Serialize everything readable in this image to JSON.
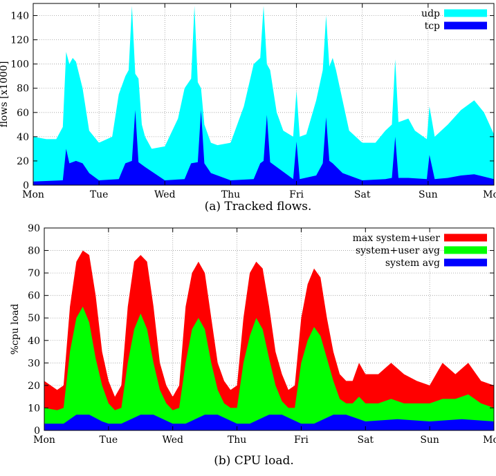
{
  "chart_data": [
    {
      "type": "area",
      "caption": "(a) Tracked flows.",
      "ylabel": "flows [x1000]",
      "xlabel": "",
      "ylim": [
        0,
        150
      ],
      "yticks": [
        0,
        20,
        40,
        60,
        80,
        100,
        120,
        140
      ],
      "xlim": [
        0,
        7
      ],
      "x_tick_labels": [
        "Mon",
        "Tue",
        "Wed",
        "Thu",
        "Fri",
        "Sat",
        "Sun",
        "Mon"
      ],
      "grid": true,
      "legend_position": "top-right",
      "series": [
        {
          "name": "udp",
          "color": "#00FFFF",
          "x": [
            0,
            0.2,
            0.35,
            0.45,
            0.5,
            0.55,
            0.6,
            0.65,
            0.75,
            0.85,
            1.0,
            1.2,
            1.3,
            1.4,
            1.45,
            1.5,
            1.55,
            1.6,
            1.65,
            1.7,
            1.8,
            2.0,
            2.2,
            2.3,
            2.4,
            2.45,
            2.5,
            2.55,
            2.6,
            2.7,
            2.8,
            3.0,
            3.2,
            3.35,
            3.45,
            3.5,
            3.55,
            3.6,
            3.7,
            3.8,
            3.95,
            4.0,
            4.05,
            4.15,
            4.3,
            4.4,
            4.45,
            4.5,
            4.55,
            4.6,
            4.7,
            4.8,
            5.0,
            5.2,
            5.35,
            5.45,
            5.5,
            5.55,
            5.6,
            5.7,
            5.8,
            5.98,
            6.02,
            6.1,
            6.3,
            6.5,
            6.7,
            6.85,
            7.0
          ],
          "y": [
            40,
            38,
            38,
            48,
            110,
            100,
            105,
            102,
            80,
            45,
            35,
            40,
            75,
            90,
            95,
            148,
            92,
            88,
            50,
            40,
            30,
            32,
            55,
            80,
            88,
            148,
            85,
            80,
            50,
            35,
            33,
            35,
            65,
            100,
            105,
            148,
            100,
            95,
            60,
            45,
            40,
            78,
            40,
            42,
            70,
            95,
            140,
            98,
            105,
            95,
            70,
            45,
            35,
            35,
            45,
            50,
            104,
            52,
            53,
            55,
            45,
            38,
            65,
            40,
            50,
            62,
            70,
            60,
            42
          ]
        },
        {
          "name": "tcp",
          "color": "#0000FF",
          "x": [
            0,
            0.45,
            0.5,
            0.55,
            0.65,
            0.75,
            0.85,
            1.0,
            1.3,
            1.4,
            1.5,
            1.55,
            1.6,
            1.7,
            2.0,
            2.3,
            2.4,
            2.5,
            2.55,
            2.6,
            2.7,
            3.0,
            3.35,
            3.45,
            3.5,
            3.55,
            3.6,
            3.7,
            3.95,
            4.0,
            4.05,
            4.3,
            4.4,
            4.45,
            4.5,
            4.55,
            4.7,
            5.0,
            5.35,
            5.45,
            5.5,
            5.55,
            5.7,
            5.98,
            6.02,
            6.1,
            6.3,
            6.5,
            6.7,
            7.0
          ],
          "y": [
            3,
            4,
            30,
            18,
            20,
            18,
            10,
            4,
            5,
            18,
            20,
            62,
            19,
            15,
            4,
            5,
            18,
            19,
            62,
            18,
            10,
            4,
            5,
            18,
            20,
            58,
            19,
            15,
            5,
            36,
            5,
            8,
            18,
            56,
            20,
            18,
            10,
            4,
            5,
            6,
            40,
            6,
            6,
            5,
            25,
            5,
            6,
            8,
            9,
            5
          ]
        }
      ]
    },
    {
      "type": "area",
      "caption": "(b) CPU load.",
      "ylabel": "%cpu load",
      "xlabel": "",
      "ylim": [
        0,
        90
      ],
      "yticks": [
        0,
        10,
        20,
        30,
        40,
        50,
        60,
        70,
        80,
        90
      ],
      "xlim": [
        0,
        7
      ],
      "x_tick_labels": [
        "Mon",
        "Tue",
        "Wed",
        "Thu",
        "Fri",
        "Sat",
        "Sun",
        "Mon"
      ],
      "grid": true,
      "legend_position": "top-right",
      "series": [
        {
          "name": "max system+user",
          "color": "#FF0000",
          "x": [
            0,
            0.2,
            0.3,
            0.4,
            0.5,
            0.6,
            0.7,
            0.8,
            0.9,
            1.0,
            1.1,
            1.2,
            1.3,
            1.4,
            1.5,
            1.6,
            1.7,
            1.8,
            1.9,
            2.0,
            2.1,
            2.2,
            2.3,
            2.4,
            2.5,
            2.6,
            2.7,
            2.8,
            2.9,
            3.0,
            3.1,
            3.2,
            3.3,
            3.4,
            3.5,
            3.6,
            3.7,
            3.8,
            3.9,
            4.0,
            4.1,
            4.2,
            4.3,
            4.4,
            4.5,
            4.6,
            4.7,
            4.8,
            4.9,
            5.0,
            5.2,
            5.4,
            5.6,
            5.8,
            6.0,
            6.2,
            6.4,
            6.6,
            6.8,
            7.0
          ],
          "y": [
            22,
            18,
            20,
            55,
            75,
            80,
            78,
            60,
            35,
            22,
            15,
            20,
            55,
            75,
            78,
            75,
            55,
            30,
            20,
            15,
            20,
            55,
            70,
            75,
            70,
            50,
            30,
            22,
            18,
            20,
            50,
            70,
            75,
            72,
            55,
            35,
            25,
            18,
            20,
            50,
            65,
            72,
            68,
            50,
            35,
            25,
            22,
            22,
            30,
            25,
            25,
            30,
            25,
            22,
            20,
            30,
            25,
            30,
            22,
            20
          ]
        },
        {
          "name": "system+user avg",
          "color": "#00FF00",
          "x": [
            0,
            0.2,
            0.3,
            0.4,
            0.5,
            0.6,
            0.7,
            0.8,
            0.9,
            1.0,
            1.1,
            1.2,
            1.3,
            1.4,
            1.5,
            1.6,
            1.7,
            1.8,
            1.9,
            2.0,
            2.1,
            2.2,
            2.3,
            2.4,
            2.5,
            2.6,
            2.7,
            2.8,
            2.9,
            3.0,
            3.1,
            3.2,
            3.3,
            3.4,
            3.5,
            3.6,
            3.7,
            3.8,
            3.9,
            4.0,
            4.1,
            4.2,
            4.3,
            4.4,
            4.5,
            4.6,
            4.7,
            4.8,
            4.9,
            5.0,
            5.2,
            5.4,
            5.6,
            5.8,
            6.0,
            6.2,
            6.4,
            6.6,
            6.8,
            7.0
          ],
          "y": [
            10,
            9,
            10,
            35,
            50,
            55,
            48,
            32,
            20,
            12,
            9,
            10,
            30,
            45,
            52,
            45,
            30,
            18,
            12,
            9,
            10,
            30,
            45,
            50,
            45,
            30,
            18,
            12,
            10,
            10,
            30,
            42,
            50,
            45,
            32,
            20,
            13,
            10,
            10,
            30,
            40,
            46,
            42,
            32,
            22,
            14,
            12,
            12,
            15,
            12,
            12,
            14,
            12,
            12,
            12,
            14,
            14,
            16,
            12,
            10
          ]
        },
        {
          "name": "system avg",
          "color": "#0000FF",
          "x": [
            0,
            0.3,
            0.5,
            0.7,
            0.9,
            1.0,
            1.2,
            1.5,
            1.7,
            2.0,
            2.2,
            2.5,
            2.7,
            3.0,
            3.2,
            3.5,
            3.7,
            4.0,
            4.2,
            4.5,
            4.7,
            5.0,
            5.5,
            6.0,
            6.5,
            7.0
          ],
          "y": [
            3,
            3,
            7,
            7,
            4,
            3,
            3,
            7,
            7,
            3,
            3,
            7,
            7,
            3,
            3,
            7,
            7,
            3,
            3,
            7,
            7,
            4,
            5,
            4,
            5,
            4
          ]
        }
      ]
    }
  ]
}
